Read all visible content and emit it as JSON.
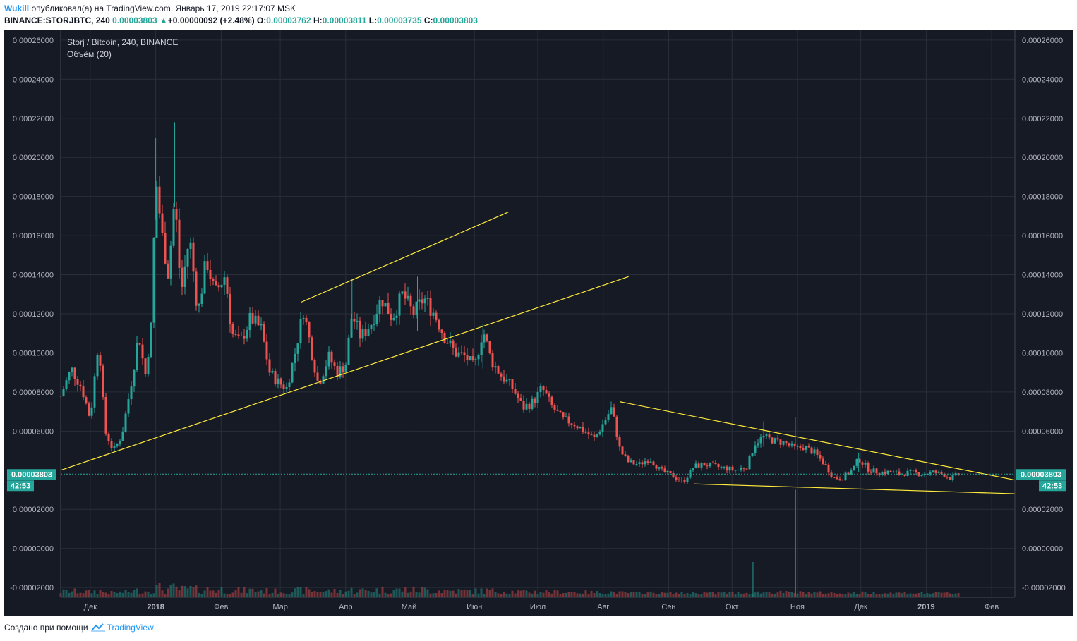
{
  "header": {
    "user": "Wukill",
    "published": "опубликовал(а) на TradingView.com, Январь 17, 2019 22:17:07 MSK",
    "symbol": "BINANCE:STORJBTC, 240",
    "last": "0.00003803",
    "arrow": "▲",
    "change": "+0.00000092 (+2.48%)",
    "o_label": "O:",
    "o": "0.00003762",
    "h_label": "H:",
    "h": "0.00003811",
    "l_label": "L:",
    "l": "0.00003735",
    "c_label": "C:",
    "c": "0.00003803"
  },
  "legend": {
    "title": "Storj / Bitcoin, 240, BINANCE",
    "volume": "Объём (20)"
  },
  "price_tag": "0.00003803",
  "countdown": "42:53",
  "footer": {
    "made_with": "Создано при помощи",
    "brand": "TradingView"
  },
  "colors": {
    "background": "#161a25",
    "grid": "#2a2e39",
    "up": "#26a69a",
    "down": "#ef5350",
    "trendline": "#ffeb3b",
    "price_line": "#26a69a"
  },
  "chart_data": {
    "type": "candlestick",
    "title": "Storj / Bitcoin, 240, BINANCE",
    "y_ticks": [
      "0.00026000",
      "0.00024000",
      "0.00022000",
      "0.00020000",
      "0.00018000",
      "0.00016000",
      "0.00014000",
      "0.00012000",
      "0.00010000",
      "0.00008000",
      "0.00006000",
      "0.00002000",
      "0.00000000",
      "-0.00002000"
    ],
    "ylim": [
      -2.5e-05,
      0.000265
    ],
    "x_ticks": [
      "Дек",
      "2018",
      "Фев",
      "Мар",
      "Апр",
      "Май",
      "Июн",
      "Июл",
      "Авг",
      "Сен",
      "Окт",
      "Ноя",
      "Дек",
      "2019",
      "Фев"
    ],
    "xlim": [
      "2017-11-17",
      "2019-02-12"
    ],
    "close_path": [
      [
        "2017-11-17",
        7.8e-05
      ],
      [
        "2017-11-22",
        9.2e-05
      ],
      [
        "2017-11-27",
        8.2e-05
      ],
      [
        "2017-12-01",
        6.6e-05
      ],
      [
        "2017-12-05",
        0.000108
      ],
      [
        "2017-12-08",
        6e-05
      ],
      [
        "2017-12-12",
        5e-05
      ],
      [
        "2017-12-16",
        5.8e-05
      ],
      [
        "2017-12-20",
        8.2e-05
      ],
      [
        "2017-12-24",
        0.00011
      ],
      [
        "2017-12-27",
        8.8e-05
      ],
      [
        "2017-12-30",
        0.000115
      ],
      [
        "2018-01-01",
        0.00019
      ],
      [
        "2018-01-04",
        0.00016
      ],
      [
        "2018-01-07",
        0.00014
      ],
      [
        "2018-01-10",
        0.00018
      ],
      [
        "2018-01-13",
        0.00013
      ],
      [
        "2018-01-17",
        0.00016
      ],
      [
        "2018-01-21",
        0.00012
      ],
      [
        "2018-01-25",
        0.000148
      ],
      [
        "2018-01-29",
        0.00013
      ],
      [
        "2018-02-03",
        0.00014
      ],
      [
        "2018-02-06",
        0.00011
      ],
      [
        "2018-02-10",
        0.000105
      ],
      [
        "2018-02-15",
        0.000118
      ],
      [
        "2018-02-20",
        0.000112
      ],
      [
        "2018-02-24",
        9e-05
      ],
      [
        "2018-02-28",
        8.5e-05
      ],
      [
        "2018-03-04",
        8.2e-05
      ],
      [
        "2018-03-08",
        0.0001
      ],
      [
        "2018-03-12",
        0.000122
      ],
      [
        "2018-03-16",
        0.0001
      ],
      [
        "2018-03-19",
        8.4e-05
      ],
      [
        "2018-03-24",
        9.8e-05
      ],
      [
        "2018-03-28",
        9e-05
      ],
      [
        "2018-04-01",
        9.4e-05
      ],
      [
        "2018-04-04",
        0.00012
      ],
      [
        "2018-04-08",
        0.000108
      ],
      [
        "2018-04-13",
        0.000115
      ],
      [
        "2018-04-18",
        0.000128
      ],
      [
        "2018-04-23",
        0.000118
      ],
      [
        "2018-04-28",
        0.00013
      ],
      [
        "2018-05-03",
        0.00012
      ],
      [
        "2018-05-08",
        0.000128
      ],
      [
        "2018-05-13",
        0.00012
      ],
      [
        "2018-05-18",
        0.000108
      ],
      [
        "2018-05-23",
        0.0001
      ],
      [
        "2018-05-28",
        9.8e-05
      ],
      [
        "2018-06-01",
        9.2e-05
      ],
      [
        "2018-06-05",
        0.000112
      ],
      [
        "2018-06-09",
        9.6e-05
      ],
      [
        "2018-06-14",
        8.8e-05
      ],
      [
        "2018-06-19",
        8.2e-05
      ],
      [
        "2018-06-24",
        7.2e-05
      ],
      [
        "2018-06-29",
        7.5e-05
      ],
      [
        "2018-07-03",
        8.2e-05
      ],
      [
        "2018-07-08",
        7.2e-05
      ],
      [
        "2018-07-13",
        6.6e-05
      ],
      [
        "2018-07-18",
        6.4e-05
      ],
      [
        "2018-07-23",
        6e-05
      ],
      [
        "2018-07-28",
        5.6e-05
      ],
      [
        "2018-08-02",
        6.6e-05
      ],
      [
        "2018-08-05",
        7.2e-05
      ],
      [
        "2018-08-09",
        5e-05
      ],
      [
        "2018-08-13",
        4.4e-05
      ],
      [
        "2018-08-18",
        4.3e-05
      ],
      [
        "2018-08-23",
        4.6e-05
      ],
      [
        "2018-08-28",
        4e-05
      ],
      [
        "2018-09-03",
        3.7e-05
      ],
      [
        "2018-09-08",
        3.4e-05
      ],
      [
        "2018-09-13",
        4.2e-05
      ],
      [
        "2018-09-18",
        4.3e-05
      ],
      [
        "2018-09-23",
        4.2e-05
      ],
      [
        "2018-09-28",
        4.1e-05
      ],
      [
        "2018-10-03",
        4e-05
      ],
      [
        "2018-10-08",
        4.2e-05
      ],
      [
        "2018-10-12",
        5.4e-05
      ],
      [
        "2018-10-16",
        5.7e-05
      ],
      [
        "2018-10-21",
        5.5e-05
      ],
      [
        "2018-10-26",
        5.4e-05
      ],
      [
        "2018-10-31",
        5.1e-05
      ],
      [
        "2018-11-04",
        5.2e-05
      ],
      [
        "2018-11-09",
        4.9e-05
      ],
      [
        "2018-11-14",
        4.3e-05
      ],
      [
        "2018-11-18",
        3.6e-05
      ],
      [
        "2018-11-22",
        3.6e-05
      ],
      [
        "2018-11-27",
        4e-05
      ],
      [
        "2018-11-30",
        4.6e-05
      ],
      [
        "2018-12-05",
        4e-05
      ],
      [
        "2018-12-10",
        3.9e-05
      ],
      [
        "2018-12-15",
        3.9e-05
      ],
      [
        "2018-12-20",
        3.8e-05
      ],
      [
        "2018-12-25",
        3.9e-05
      ],
      [
        "2018-12-30",
        3.8e-05
      ],
      [
        "2019-01-04",
        3.9e-05
      ],
      [
        "2019-01-09",
        3.8e-05
      ],
      [
        "2019-01-12",
        3.6e-05
      ],
      [
        "2019-01-17",
        3.8e-05
      ]
    ],
    "spikes": [
      {
        "date": "2018-01-01",
        "high": 0.00021
      },
      {
        "date": "2018-01-10",
        "high": 0.000218
      },
      {
        "date": "2018-01-13",
        "high": 0.000205
      },
      {
        "date": "2018-04-04",
        "high": 0.000138
      },
      {
        "date": "2018-05-05",
        "high": 0.000139
      },
      {
        "date": "2018-06-05",
        "high": 0.000115
      },
      {
        "date": "2018-10-16",
        "high": 6.5e-05
      },
      {
        "date": "2018-10-31",
        "high": 6.7e-05
      },
      {
        "date": "2018-11-30",
        "high": 4.9e-05
      }
    ],
    "trendlines": [
      {
        "from": [
          "2017-11-17",
          4e-05
        ],
        "to": [
          "2018-08-13",
          0.000139
        ]
      },
      {
        "from": [
          "2018-03-11",
          0.000126
        ],
        "to": [
          "2018-06-17",
          0.000172
        ]
      },
      {
        "from": [
          "2018-08-09",
          7.5e-05
        ],
        "to": [
          "2019-02-12",
          3.5e-05
        ]
      },
      {
        "from": [
          "2018-09-13",
          3.3e-05
        ],
        "to": [
          "2019-02-12",
          2.8e-05
        ]
      }
    ],
    "volume_spike": {
      "date": "2018-10-31"
    },
    "last_price": 3.803e-05
  }
}
